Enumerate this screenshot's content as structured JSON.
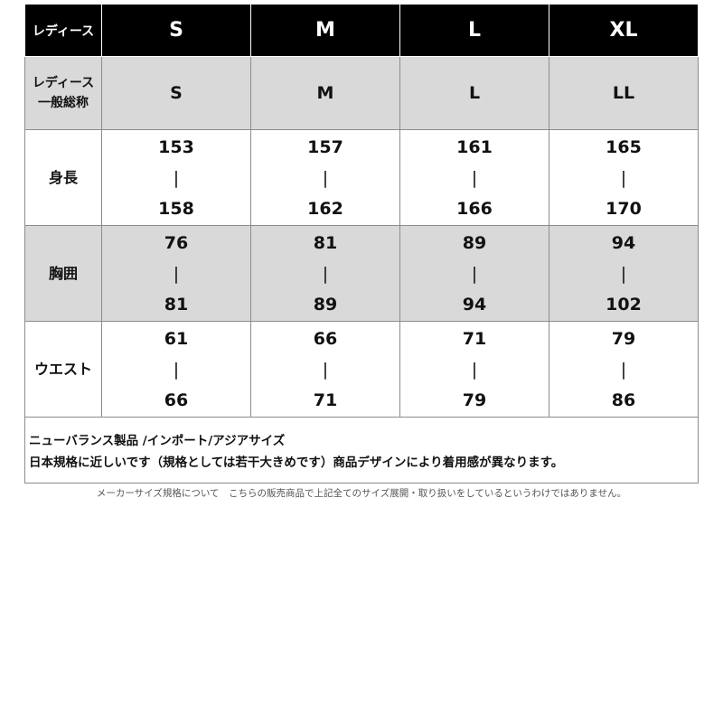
{
  "header": {
    "label": "レディース",
    "sizes": [
      "S",
      "M",
      "L",
      "XL"
    ]
  },
  "general": {
    "label": "レディース 一般総称",
    "label_line1": "レディース",
    "label_line2": "一般総称",
    "sizes": [
      "S",
      "M",
      "L",
      "LL"
    ]
  },
  "rows": [
    {
      "label": "身長",
      "ranges": [
        [
          "153",
          "158"
        ],
        [
          "157",
          "162"
        ],
        [
          "161",
          "166"
        ],
        [
          "165",
          "170"
        ]
      ]
    },
    {
      "label": "胸囲",
      "ranges": [
        [
          "76",
          "81"
        ],
        [
          "81",
          "89"
        ],
        [
          "89",
          "94"
        ],
        [
          "94",
          "102"
        ]
      ]
    },
    {
      "label": "ウエスト",
      "ranges": [
        [
          "61",
          "66"
        ],
        [
          "66",
          "71"
        ],
        [
          "71",
          "79"
        ],
        [
          "79",
          "86"
        ]
      ]
    }
  ],
  "separator": "|",
  "note": {
    "line1": "ニューバランス製品 /インポート/アジアサイズ",
    "line2": "日本規格に近しいです（規格としては若干大きめです）商品デザインにより着用感が異なります。"
  },
  "footer": "メーカーサイズ規格について　こちらの販売商品で上記全てのサイズ展開・取り扱いをしているというわけではありません。"
}
